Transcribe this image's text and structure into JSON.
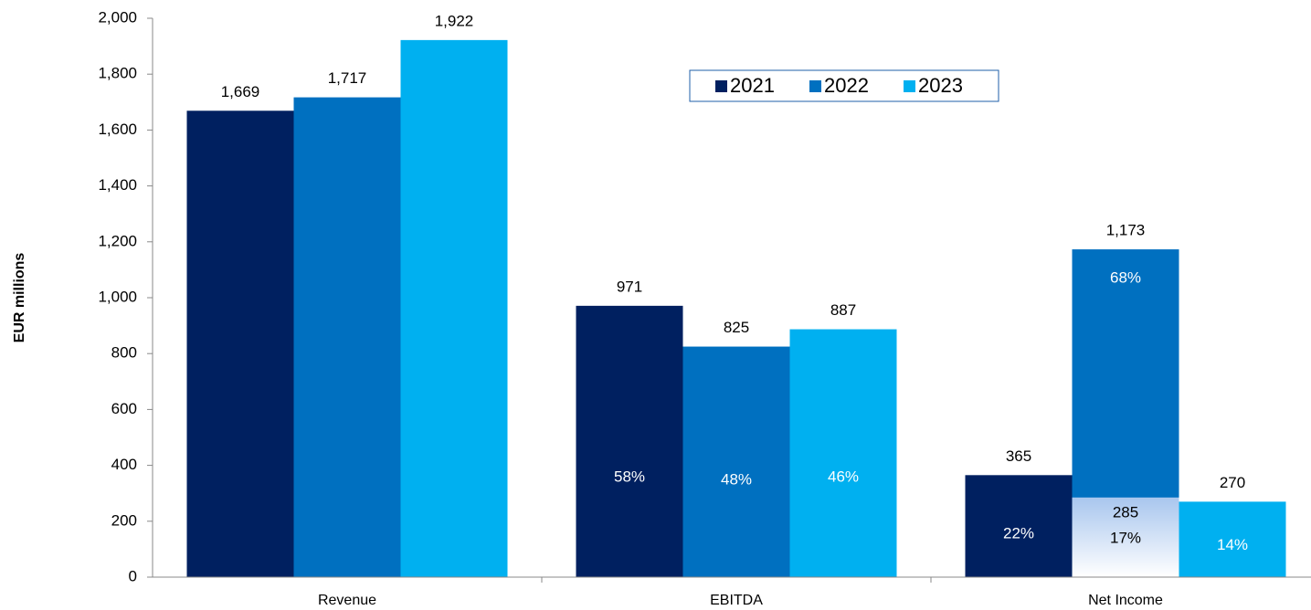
{
  "chart_data": {
    "type": "bar",
    "y_label": "EUR millions",
    "categories": [
      "Revenue",
      "EBITDA",
      "Net Income"
    ],
    "series": [
      {
        "name": "2021",
        "color": "#002060",
        "values": [
          1669,
          971,
          365
        ],
        "value_labels": [
          "1,669",
          "971",
          "365"
        ],
        "margin_labels": [
          null,
          "58%",
          "22%"
        ]
      },
      {
        "name": "2022",
        "color": "#0070c0",
        "values": [
          1717,
          825,
          1173
        ],
        "value_labels": [
          "1,717",
          "825",
          "1,173"
        ],
        "margin_labels": [
          null,
          "48%",
          "68%"
        ],
        "sub_values": [
          null,
          null,
          285
        ],
        "sub_labels": [
          null,
          null,
          "17%"
        ]
      },
      {
        "name": "2023",
        "color": "#00b0f0",
        "values": [
          1922,
          887,
          270
        ],
        "value_labels": [
          "1,922",
          "887",
          "270"
        ],
        "margin_labels": [
          null,
          "46%",
          "14%"
        ]
      }
    ],
    "ylim": [
      0,
      2000
    ],
    "yticks": [
      0,
      200,
      400,
      600,
      800,
      {
        "value": 1000,
        "label": "1,000"
      },
      {
        "value": 1200,
        "label": "1,200"
      },
      {
        "value": 1400,
        "label": "1,400"
      },
      {
        "value": 1600,
        "label": "1,600"
      },
      {
        "value": 1800,
        "label": "1,800"
      },
      {
        "value": 2000,
        "label": "2,000"
      }
    ],
    "legend": "top"
  }
}
